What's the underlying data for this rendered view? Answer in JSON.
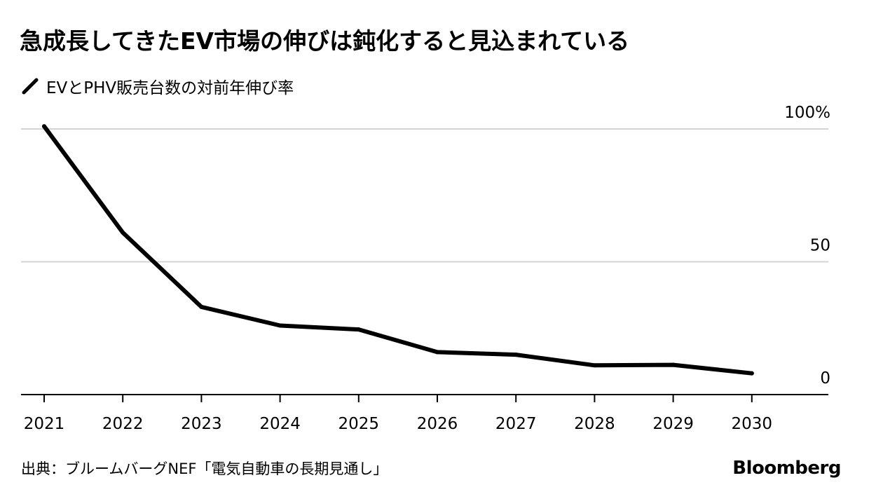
{
  "header": {
    "title": "急成長してきたEV市場の伸びは鈍化すると見込まれている"
  },
  "legend": {
    "items": [
      {
        "label": "EVとPHV販売台数の対前年伸び率",
        "color": "#000000"
      }
    ]
  },
  "chart_data": {
    "type": "line",
    "title": "急成長してきたEV市場の伸びは鈍化すると見込まれている",
    "xlabel": "",
    "ylabel": "",
    "x": [
      2021,
      2022,
      2023,
      2024,
      2025,
      2026,
      2027,
      2028,
      2029,
      2030
    ],
    "x_tick_labels": [
      "2021",
      "2022",
      "2023",
      "2024",
      "2025",
      "2026",
      "2027",
      "2028",
      "2029",
      "2030"
    ],
    "series": [
      {
        "name": "EVとPHV販売台数の対前年伸び率",
        "color": "#000000",
        "values": [
          101,
          61,
          33,
          26,
          24.5,
          16,
          15,
          11,
          11.2,
          8
        ]
      }
    ],
    "ylim": [
      0,
      100
    ],
    "y_ticks": [
      0,
      50,
      100
    ],
    "y_tick_labels": [
      "0",
      "50",
      "100%"
    ],
    "y_axis_position": "right",
    "grid": true
  },
  "footer": {
    "source": "出典：ブルームバーグNEF「電気自動車の長期見通し」",
    "brand": "Bloomberg"
  }
}
